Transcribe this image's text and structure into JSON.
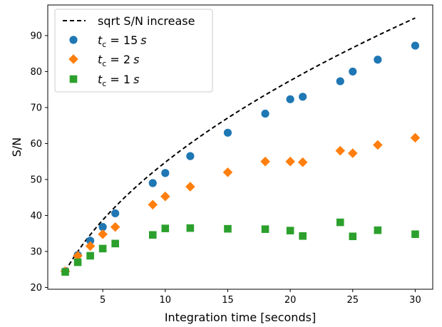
{
  "chart_data": {
    "type": "scatter",
    "xlabel": "Integration time [seconds]",
    "ylabel": "S/N",
    "xlim": [
      0.6,
      31.4
    ],
    "ylim": [
      19.5,
      98.5
    ],
    "xticks": [
      5,
      10,
      15,
      20,
      25,
      30
    ],
    "yticks": [
      20,
      30,
      40,
      50,
      60,
      70,
      80,
      90
    ],
    "grid": false,
    "legend_position": "top-left",
    "curve": {
      "name": "sqrt S/N increase",
      "style": "dashed",
      "color": "#000000",
      "x_start": 2,
      "x_end": 30,
      "y_at_x_start": 24.5
    },
    "series": [
      {
        "name_prefix": "t",
        "name_subscript": "c",
        "name_value": " = 15",
        "name_unit": "s",
        "marker": "circle",
        "color": "#1f77b4",
        "x": [
          2,
          3,
          4,
          5,
          6,
          9,
          10,
          12,
          15,
          18,
          20,
          21,
          24,
          25,
          27,
          30
        ],
        "y": [
          24.5,
          29.0,
          33.0,
          36.8,
          40.6,
          49.0,
          51.8,
          56.5,
          63.0,
          68.3,
          72.3,
          73.0,
          77.3,
          80.0,
          83.3,
          87.2
        ]
      },
      {
        "name_prefix": "t",
        "name_subscript": "c",
        "name_value": " = 2",
        "name_unit": "s",
        "marker": "diamond",
        "color": "#ff7f0e",
        "x": [
          2,
          3,
          4,
          5,
          6,
          9,
          10,
          12,
          15,
          18,
          20,
          21,
          24,
          25,
          27,
          30
        ],
        "y": [
          24.5,
          28.8,
          31.5,
          34.8,
          36.8,
          43.0,
          45.3,
          48.0,
          52.0,
          55.0,
          55.0,
          54.8,
          58.0,
          57.3,
          59.6,
          61.6
        ]
      },
      {
        "name_prefix": "t",
        "name_subscript": "c",
        "name_value": " = 1",
        "name_unit": "s",
        "marker": "square",
        "color": "#2ca02c",
        "x": [
          2,
          3,
          4,
          5,
          6,
          9,
          10,
          12,
          15,
          18,
          20,
          21,
          24,
          25,
          27,
          30
        ],
        "y": [
          24.3,
          27.0,
          28.8,
          30.8,
          32.2,
          34.6,
          36.4,
          36.5,
          36.3,
          36.2,
          35.8,
          34.3,
          38.1,
          34.2,
          35.9,
          34.8
        ]
      }
    ]
  }
}
